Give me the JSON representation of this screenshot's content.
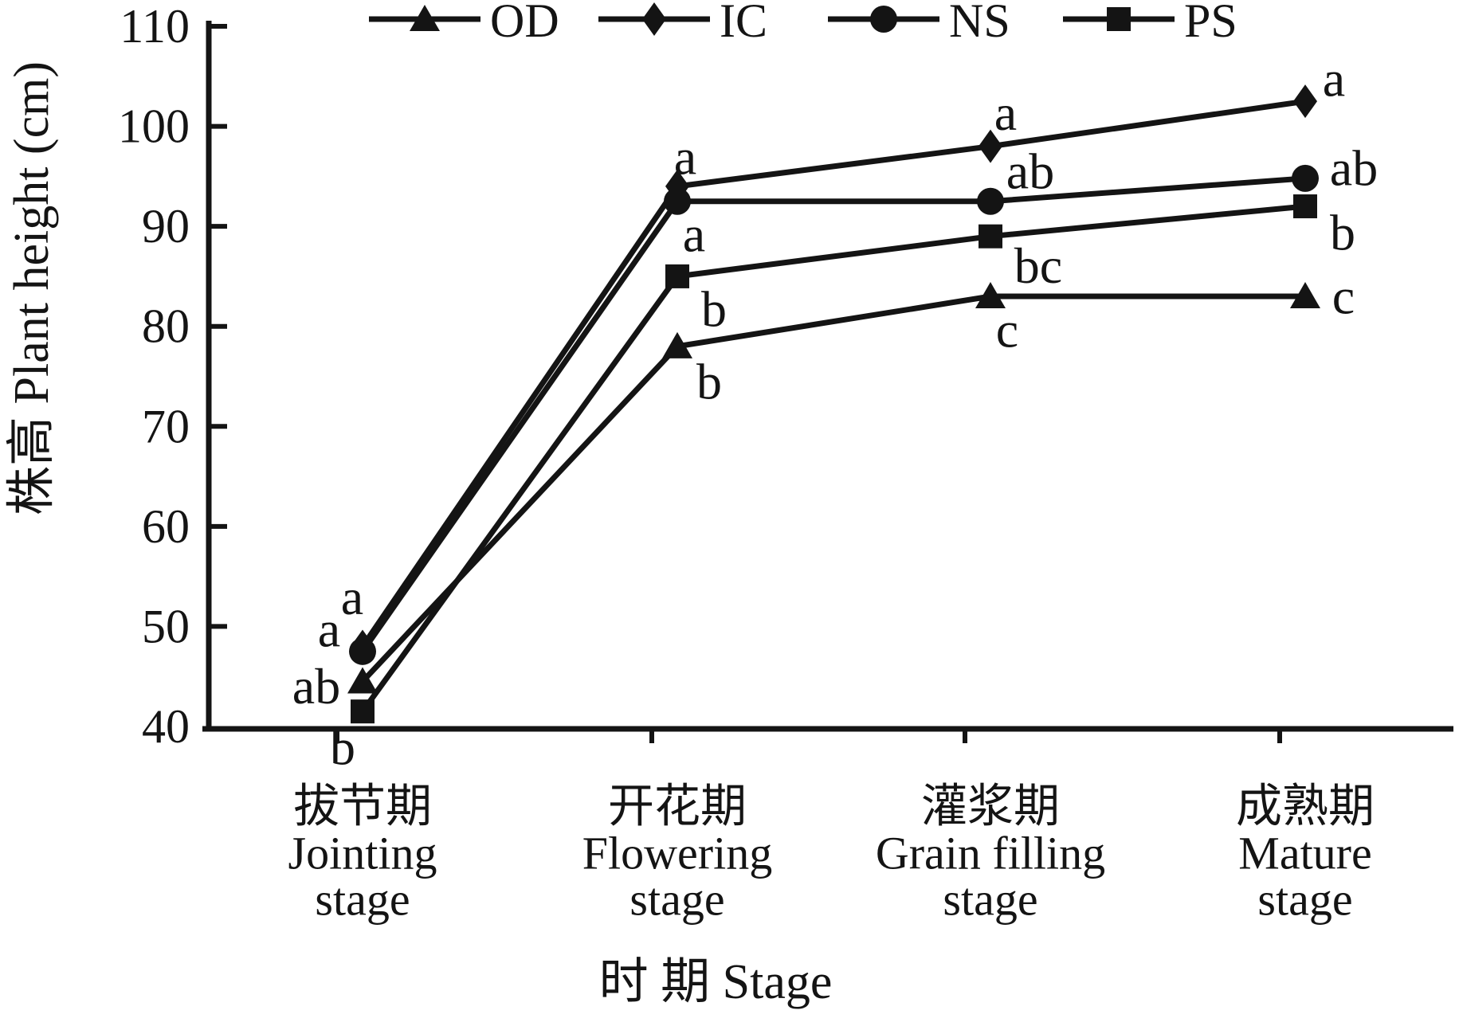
{
  "figure": {
    "background": "#ffffff",
    "ink_color": "#141414"
  },
  "chart_data": {
    "type": "line",
    "title": "",
    "xlabel": "时 期 Stage",
    "ylabel": "株高 Plant height (cm)",
    "ylim": [
      40,
      110
    ],
    "ytick_step": 10,
    "yticks": [
      40,
      50,
      60,
      70,
      80,
      90,
      100,
      110
    ],
    "grid": false,
    "legend_position": "top",
    "categories": [
      {
        "lines": [
          "拔节期",
          "Jointing",
          "stage"
        ]
      },
      {
        "lines": [
          "开花期",
          "Flowering",
          "stage"
        ]
      },
      {
        "lines": [
          "灌浆期",
          "Grain filling",
          "stage"
        ]
      },
      {
        "lines": [
          "成熟期",
          "Mature",
          "stage"
        ]
      }
    ],
    "series": [
      {
        "name": "OD",
        "marker": "triangle",
        "values": [
          44.5,
          78,
          83,
          83
        ],
        "sig_letters": [
          {
            "text": "ab",
            "dx": -58,
            "dy": 6
          },
          {
            "text": "b",
            "dx": 40,
            "dy": 44
          },
          {
            "text": "c",
            "dx": 21,
            "dy": 42
          },
          {
            "text": "c",
            "dx": 48,
            "dy": 0
          }
        ]
      },
      {
        "name": "IC",
        "marker": "diamond",
        "values": [
          48,
          94,
          98,
          102.5
        ],
        "sig_letters": [
          {
            "text": "a",
            "dx": -13,
            "dy": -62
          },
          {
            "text": "a",
            "dx": 10,
            "dy": -37
          },
          {
            "text": "a",
            "dx": 19,
            "dy": -42
          },
          {
            "text": "a",
            "dx": 36,
            "dy": -28
          }
        ]
      },
      {
        "name": "NS",
        "marker": "circle",
        "values": [
          47.5,
          92.5,
          92.5,
          94.8
        ],
        "sig_letters": [
          {
            "text": "a",
            "dx": -42,
            "dy": -28
          },
          {
            "text": "a",
            "dx": 21,
            "dy": 41
          },
          {
            "text": "ab",
            "dx": 50,
            "dy": -38
          },
          {
            "text": "ab",
            "dx": 61,
            "dy": -13
          }
        ]
      },
      {
        "name": "PS",
        "marker": "square",
        "values": [
          41.5,
          85,
          89,
          92
        ],
        "sig_letters": [
          {
            "text": "b",
            "dx": -25,
            "dy": 45
          },
          {
            "text": "b",
            "dx": 46,
            "dy": 41
          },
          {
            "text": "bc",
            "dx": 60,
            "dy": 37
          },
          {
            "text": "b",
            "dx": 47,
            "dy": 33
          }
        ]
      }
    ],
    "legend": {
      "items": [
        {
          "label": "OD",
          "marker": "triangle"
        },
        {
          "label": "IC",
          "marker": "diamond"
        },
        {
          "label": "NS",
          "marker": "circle"
        },
        {
          "label": "PS",
          "marker": "square"
        }
      ]
    }
  }
}
